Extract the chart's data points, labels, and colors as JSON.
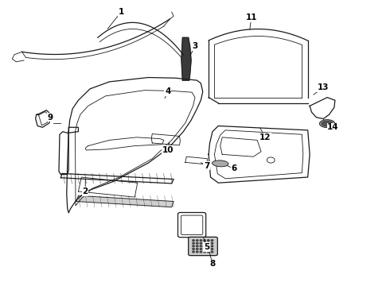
{
  "bg_color": "#ffffff",
  "line_color": "#1a1a1a",
  "label_color": "#000000",
  "label_fontsize": 7.5,
  "fig_width": 4.9,
  "fig_height": 3.6,
  "dpi": 100,
  "leaders": {
    "1": {
      "lp": [
        0.31,
        0.96
      ],
      "tp": [
        0.272,
        0.895
      ]
    },
    "2": {
      "lp": [
        0.218,
        0.33
      ],
      "tp": [
        0.218,
        0.38
      ]
    },
    "3": {
      "lp": [
        0.5,
        0.84
      ],
      "tp": [
        0.485,
        0.8
      ]
    },
    "4": {
      "lp": [
        0.43,
        0.68
      ],
      "tp": [
        0.42,
        0.65
      ]
    },
    "5": {
      "lp": [
        0.53,
        0.135
      ],
      "tp": [
        0.52,
        0.175
      ]
    },
    "6": {
      "lp": [
        0.6,
        0.41
      ],
      "tp": [
        0.575,
        0.425
      ]
    },
    "7": {
      "lp": [
        0.53,
        0.42
      ],
      "tp": [
        0.51,
        0.435
      ]
    },
    "8": {
      "lp": [
        0.545,
        0.075
      ],
      "tp": [
        0.535,
        0.13
      ]
    },
    "9": {
      "lp": [
        0.128,
        0.59
      ],
      "tp": [
        0.138,
        0.61
      ]
    },
    "10": {
      "lp": [
        0.43,
        0.475
      ],
      "tp": [
        0.435,
        0.51
      ]
    },
    "11": {
      "lp": [
        0.645,
        0.94
      ],
      "tp": [
        0.64,
        0.89
      ]
    },
    "12": {
      "lp": [
        0.68,
        0.52
      ],
      "tp": [
        0.665,
        0.56
      ]
    },
    "13": {
      "lp": [
        0.83,
        0.695
      ],
      "tp": [
        0.8,
        0.665
      ]
    },
    "14": {
      "lp": [
        0.855,
        0.555
      ],
      "tp": [
        0.835,
        0.575
      ]
    }
  }
}
